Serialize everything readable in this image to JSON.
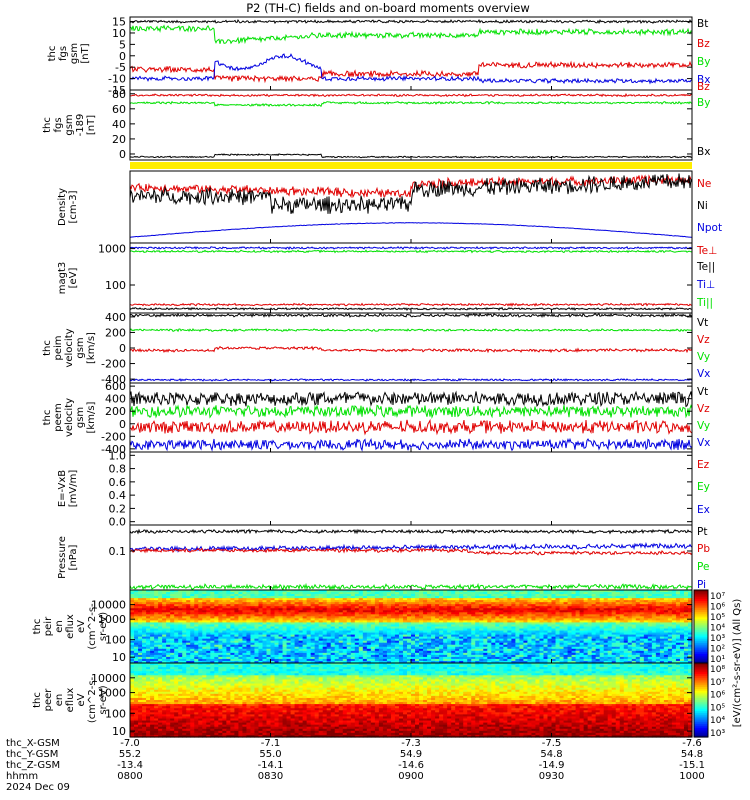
{
  "title": "P2 (TH-C) fields and on-board moments overview",
  "colors": {
    "black": "#000000",
    "red": "#e00000",
    "green": "#00e000",
    "blue": "#0000e0",
    "yellow": "#ffee00"
  },
  "chart_data": [
    {
      "type": "line",
      "id": "fgs_gsm",
      "ylabel": [
        "thc",
        "fgs",
        "gsm",
        "[nT]"
      ],
      "ylim": [
        -15,
        17
      ],
      "yticks": [
        "15",
        "10",
        "5",
        "0",
        "-5",
        "-10",
        "-15"
      ],
      "ytick_values": [
        15,
        10,
        5,
        0,
        -5,
        -10,
        -15
      ],
      "series": [
        {
          "name": "Bt",
          "color": "#000000"
        },
        {
          "name": "Bz",
          "color": "#e00000"
        },
        {
          "name": "By",
          "color": "#00e000"
        },
        {
          "name": "Bx",
          "color": "#0000e0"
        }
      ]
    },
    {
      "type": "line",
      "id": "fgs_gsm_log",
      "ylabel": [
        "thc",
        "fgs",
        "gsm",
        "-189",
        "[nT]"
      ],
      "ylim": [
        -8,
        85
      ],
      "yticks": [
        "80",
        "60",
        "40",
        "20",
        "0"
      ],
      "ytick_values": [
        80,
        60,
        40,
        20,
        0
      ],
      "series": [
        {
          "name": "Bz",
          "color": "#e00000"
        },
        {
          "name": "By",
          "color": "#00e000"
        },
        {
          "name": "Bx",
          "color": "#000000"
        }
      ]
    },
    {
      "type": "line",
      "id": "density",
      "ylabel": [
        "Density",
        "[cm-3]"
      ],
      "yticks": [],
      "series": [
        {
          "name": "Ne",
          "color": "#e00000"
        },
        {
          "name": "Ni",
          "color": "#000000"
        },
        {
          "name": "Npot",
          "color": "#0000e0"
        }
      ]
    },
    {
      "type": "line",
      "id": "temp",
      "ylabel": [
        "magt3",
        "[eV]"
      ],
      "log": true,
      "yticks": [
        "1000",
        "100"
      ],
      "ytick_values": [
        1000,
        100
      ],
      "series": [
        {
          "name": "Te⊥",
          "color": "#e00000"
        },
        {
          "name": "Te||",
          "color": "#000000"
        },
        {
          "name": "Ti⊥",
          "color": "#0000e0"
        },
        {
          "name": "Ti||",
          "color": "#00e000"
        }
      ]
    },
    {
      "type": "line",
      "id": "peim_vel",
      "ylabel": [
        "thc",
        "peim",
        "velocity",
        "gsm",
        "[km/s]"
      ],
      "ylim": [
        -450,
        450
      ],
      "yticks": [
        "400",
        "200",
        "0",
        "-200",
        "-400"
      ],
      "ytick_values": [
        400,
        200,
        0,
        -200,
        -400
      ],
      "series": [
        {
          "name": "Vt",
          "color": "#000000"
        },
        {
          "name": "Vz",
          "color": "#e00000"
        },
        {
          "name": "Vy",
          "color": "#00e000"
        },
        {
          "name": "Vx",
          "color": "#0000e0"
        }
      ]
    },
    {
      "type": "line",
      "id": "peem_vel",
      "ylabel": [
        "thc",
        "peem",
        "velocity",
        "gsm",
        "[km/s]"
      ],
      "ylim": [
        -450,
        650
      ],
      "yticks": [
        "600",
        "400",
        "200",
        "0",
        "-200",
        "-400"
      ],
      "ytick_values": [
        600,
        400,
        200,
        0,
        -200,
        -400
      ],
      "series": [
        {
          "name": "Vt",
          "color": "#000000"
        },
        {
          "name": "Vz",
          "color": "#e00000"
        },
        {
          "name": "Vy",
          "color": "#00e000"
        },
        {
          "name": "Vx",
          "color": "#0000e0"
        }
      ]
    },
    {
      "type": "line",
      "id": "efield",
      "ylabel": [
        "E=-VxB",
        "[mV/m]"
      ],
      "ylim": [
        -0.05,
        1.05
      ],
      "yticks": [
        "1.0",
        "0.8",
        "0.6",
        "0.4",
        "0.2",
        "0.0"
      ],
      "ytick_values": [
        1.0,
        0.8,
        0.6,
        0.4,
        0.2,
        0.0
      ],
      "series": [
        {
          "name": "Ez",
          "color": "#e00000"
        },
        {
          "name": "Ey",
          "color": "#00e000"
        },
        {
          "name": "Ex",
          "color": "#0000e0"
        }
      ]
    },
    {
      "type": "line",
      "id": "pressure",
      "ylabel": [
        "Pressure",
        "[nPa]"
      ],
      "log": true,
      "yticks": [
        "0.1"
      ],
      "ytick_values": [
        0.1
      ],
      "series": [
        {
          "name": "Pt",
          "color": "#000000"
        },
        {
          "name": "Pb",
          "color": "#e00000"
        },
        {
          "name": "Pe",
          "color": "#00e000"
        },
        {
          "name": "Pi",
          "color": "#0000e0"
        }
      ]
    },
    {
      "type": "heatmap",
      "id": "peir",
      "ylabel": [
        "thc",
        "peir",
        "en",
        "eflux",
        "eV",
        "(cm^2-s-",
        "sr-eV)"
      ],
      "yticks": [
        "10000",
        "1000",
        "100",
        "10"
      ],
      "ytick_values": [
        10000,
        1000,
        100,
        10
      ]
    },
    {
      "type": "heatmap",
      "id": "peer",
      "ylabel": [
        "thc",
        "peer",
        "en",
        "eflux",
        "eV",
        "(cm^2-s-",
        "sr-eV)"
      ],
      "yticks": [
        "10000",
        "1000",
        "100",
        "10"
      ],
      "ytick_values": [
        10000,
        1000,
        100,
        10
      ]
    }
  ],
  "colorbar": {
    "upper_ticks": [
      "10⁷",
      "10⁶",
      "10⁵",
      "10⁴",
      "10³",
      "10²",
      "10¹"
    ],
    "lower_ticks": [
      "10⁸",
      "10⁷",
      "10⁶",
      "10⁵",
      "10⁴",
      "10³"
    ],
    "label": "[eV/(cm²-s-sr-eV)] (All Qs)"
  },
  "xaxis": {
    "row_labels": [
      "thc_X-GSM",
      "thc_Y-GSM",
      "thc_Z-GSM",
      "hhmm",
      "2024 Dec 09"
    ],
    "ticks": [
      {
        "x": "-7.0",
        "y": "55.2",
        "z": "-13.4",
        "time": "0800"
      },
      {
        "x": "-7.1",
        "y": "55.0",
        "z": "-14.1",
        "time": "0830"
      },
      {
        "x": "-7.3",
        "y": "54.9",
        "z": "-14.6",
        "time": "0900"
      },
      {
        "x": "-7.5",
        "y": "54.8",
        "z": "-14.9",
        "time": "0930"
      },
      {
        "x": "-7.6",
        "y": "54.8",
        "z": "-15.1",
        "time": "1000"
      }
    ]
  }
}
